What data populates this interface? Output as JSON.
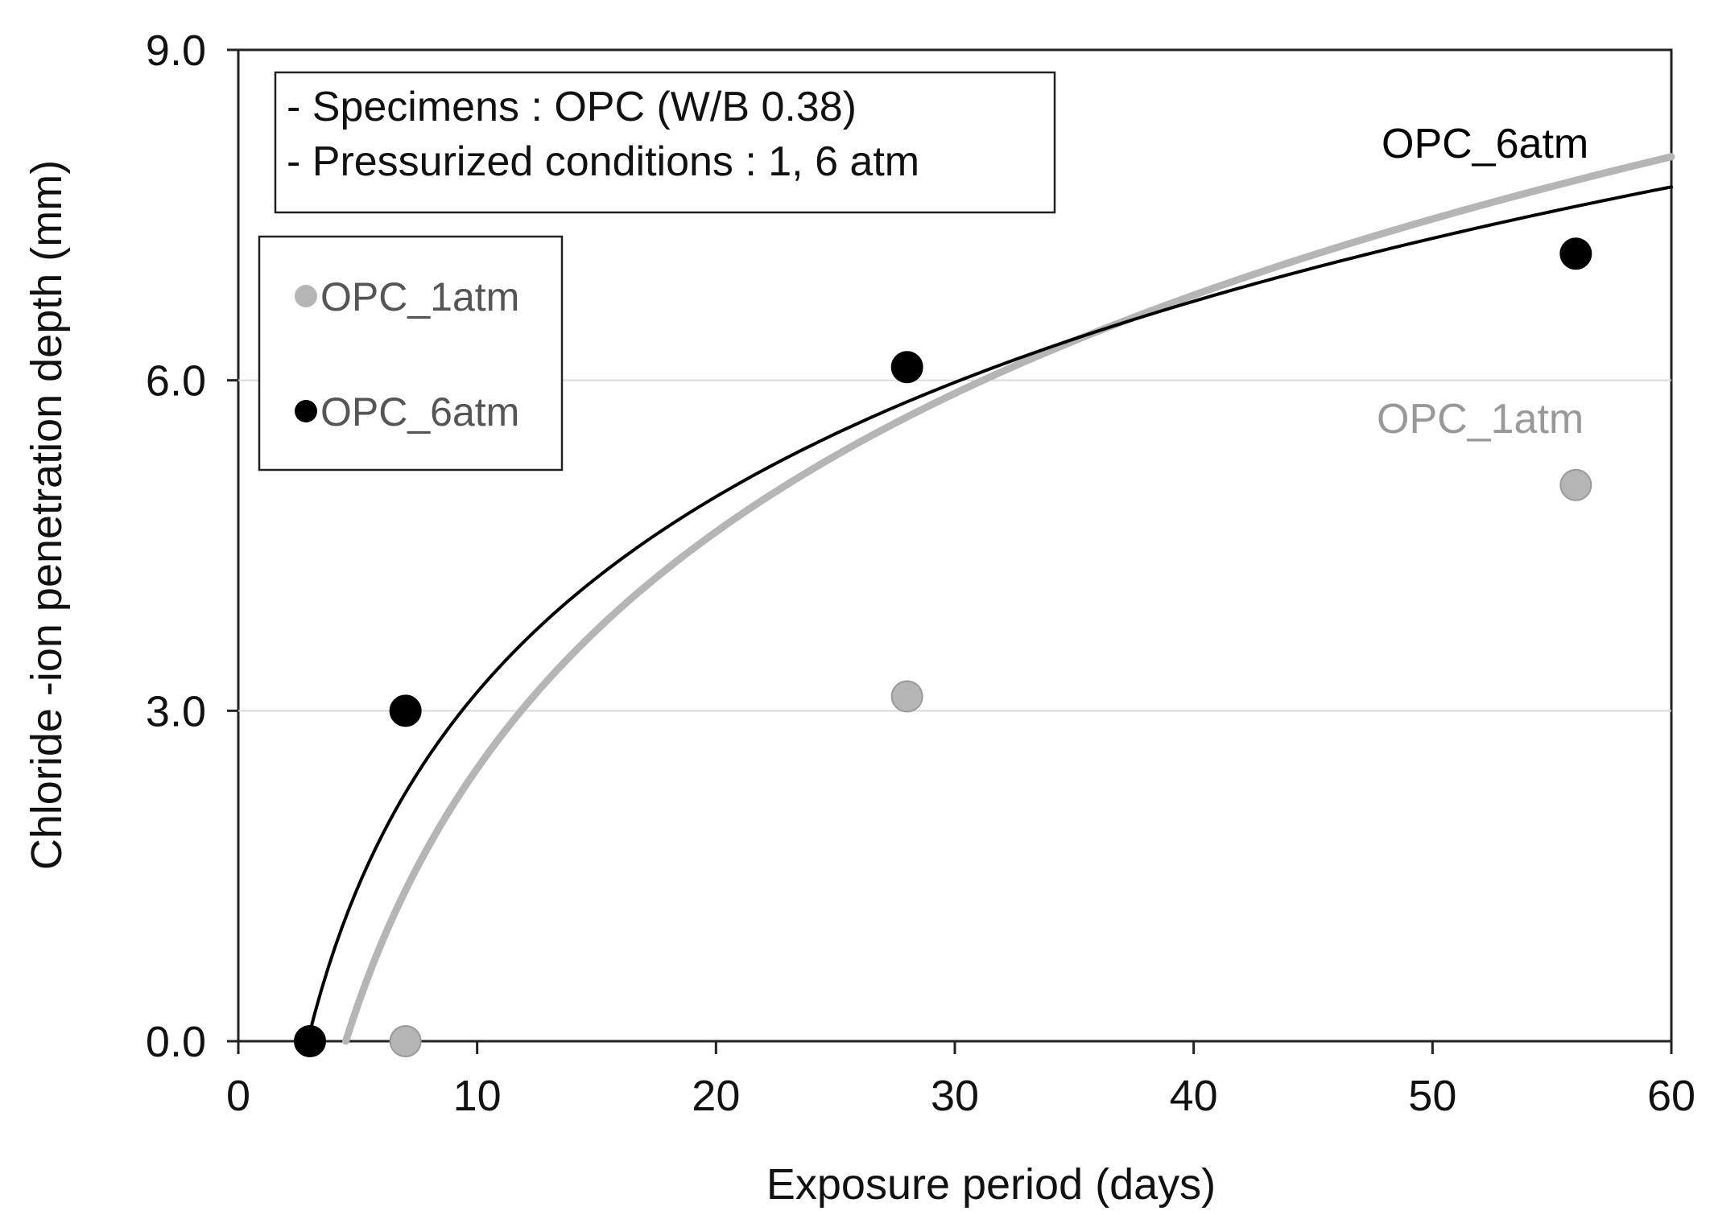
{
  "chart_data": {
    "type": "scatter",
    "title": "",
    "xlabel": "Exposure period (days)",
    "ylabel": "Chloride -ion penetration depth (mm)",
    "xlim": [
      0,
      60
    ],
    "ylim": [
      0,
      9
    ],
    "x_ticks": [
      0,
      10,
      20,
      30,
      40,
      50,
      60
    ],
    "x_tick_labels": [
      "0",
      "10",
      "20",
      "30",
      "40",
      "50",
      "60"
    ],
    "y_ticks": [
      0,
      3,
      6,
      9
    ],
    "y_tick_labels": [
      "0.0",
      "3.0",
      "6.0",
      "9.0"
    ],
    "grid": "horizontal",
    "notes": [
      "- Specimens : OPC (W/B 0.38)",
      "- Pressurized conditions : 1, 6 atm"
    ],
    "legend": {
      "placement": "upper-left",
      "entries": [
        {
          "name": "OPC_1atm",
          "color": "#b5b5b5"
        },
        {
          "name": "OPC_6atm",
          "color": "#000000"
        }
      ]
    },
    "series": [
      {
        "name": "OPC_1atm",
        "color": "#b5b5b5",
        "label_color": "#999999",
        "marker_stroke": "#9a9a9a",
        "points": [
          {
            "x": 7,
            "y": 0.0
          },
          {
            "x": 28,
            "y": 3.13
          },
          {
            "x": 56,
            "y": 5.05
          }
        ],
        "fit": {
          "type": "log",
          "a": 3.1,
          "x0": 4.5,
          "x_start": 4.5,
          "x_end": 60
        },
        "curve_label": "OPC_1atm"
      },
      {
        "name": "OPC_6atm",
        "color": "#000000",
        "label_color": "#000000",
        "marker_stroke": "#000000",
        "points": [
          {
            "x": 3,
            "y": 0.0
          },
          {
            "x": 7,
            "y": 3.0
          },
          {
            "x": 28,
            "y": 6.12
          },
          {
            "x": 56,
            "y": 7.15
          }
        ],
        "fit": {
          "type": "log",
          "a": 2.56,
          "x0": 2.9,
          "x_start": 2.9,
          "x_end": 60
        },
        "curve_label": "OPC_6atm"
      }
    ]
  }
}
